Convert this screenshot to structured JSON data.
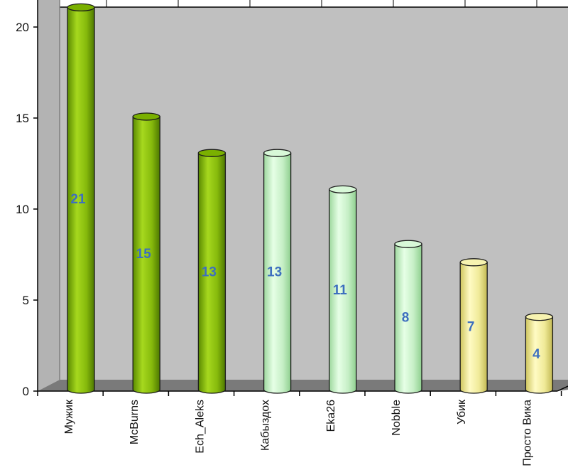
{
  "chart_data": {
    "type": "bar",
    "style": "3d-cylinder",
    "categories": [
      "Мужик",
      "McBurns",
      "Ech_Aleks",
      "Кабыздох",
      "Eka26",
      "Nobble",
      "Убик",
      "Просто Вика"
    ],
    "values": [
      21,
      15,
      13,
      13,
      11,
      8,
      7,
      4
    ],
    "bar_colors": [
      "#8bbf10",
      "#8bbf10",
      "#8bbf10",
      "#ccf2cc",
      "#ccf2cc",
      "#ccf2cc",
      "#f3ee9c",
      "#f3ee9c"
    ],
    "data_labels": [
      "21",
      "15",
      "13",
      "13",
      "11",
      "8",
      "7",
      "4"
    ],
    "y_ticks": [
      "0",
      "5",
      "10",
      "15",
      "20"
    ],
    "ylim": [
      0,
      21
    ],
    "grid": false,
    "legend": "none",
    "colors": {
      "wall": "#c0c0c0",
      "floor": "#7a7a7a",
      "data_label": "#3d6fbf",
      "axis": "#000000"
    }
  }
}
